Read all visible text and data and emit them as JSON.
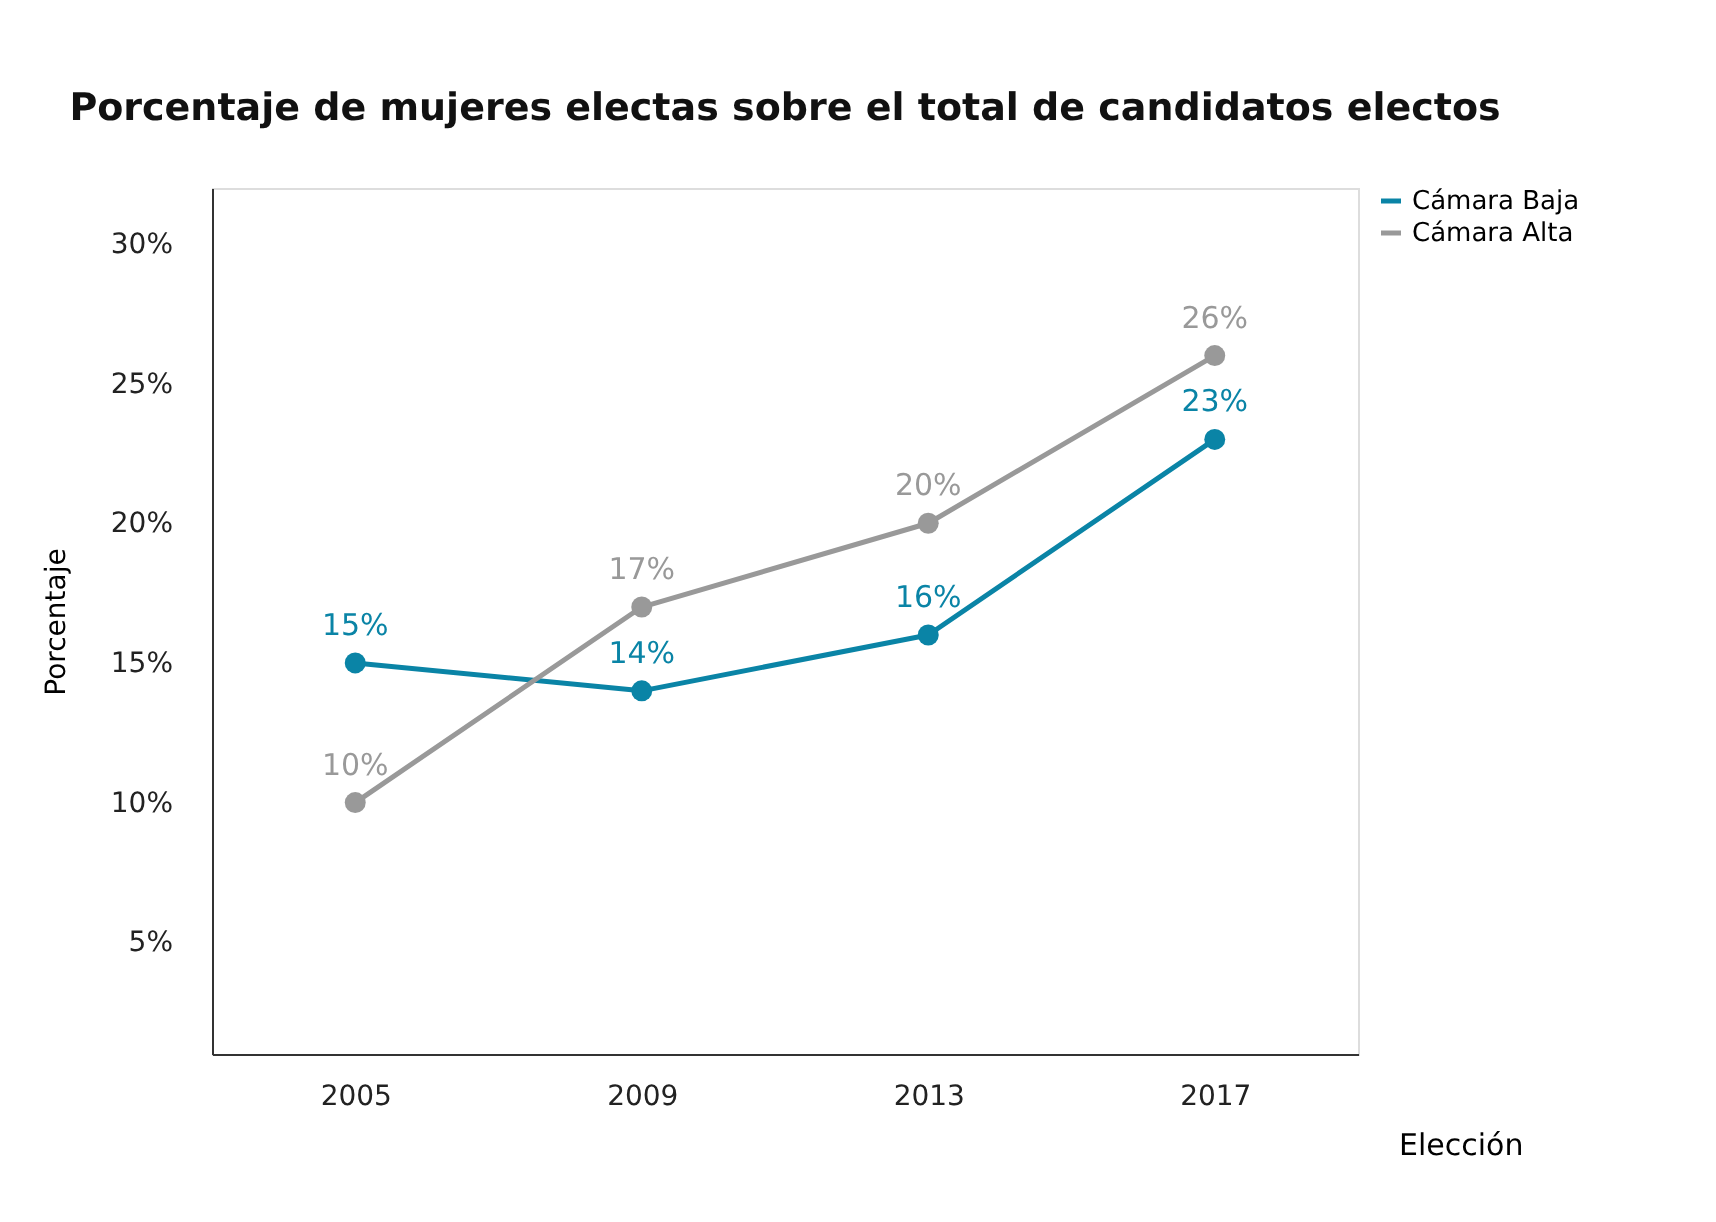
{
  "chart_data": {
    "type": "line",
    "title": "Porcentaje de mujeres electas sobre el total de candidatos electos",
    "xlabel": "Elección",
    "ylabel": "Porcentaje",
    "categories": [
      "2005",
      "2009",
      "2013",
      "2017"
    ],
    "series": [
      {
        "name": "Cámara Baja",
        "color": "#0a84a6",
        "values": [
          15,
          14,
          16,
          23
        ],
        "value_labels": [
          "15%",
          "14%",
          "16%",
          "23%"
        ]
      },
      {
        "name": "Cámara Alta",
        "color": "#999999",
        "values": [
          10,
          17,
          20,
          26
        ],
        "value_labels": [
          "10%",
          "17%",
          "20%",
          "26%"
        ]
      }
    ],
    "ylim": [
      1,
      32
    ],
    "yticks": [
      {
        "value": 5,
        "label": "5%"
      },
      {
        "value": 10,
        "label": "10%"
      },
      {
        "value": 15,
        "label": "15%"
      },
      {
        "value": 20,
        "label": "20%"
      },
      {
        "value": 25,
        "label": "25%"
      },
      {
        "value": 30,
        "label": "30%"
      }
    ],
    "marker": "circle",
    "line_style": "solid",
    "grid": false,
    "legend": "right"
  }
}
